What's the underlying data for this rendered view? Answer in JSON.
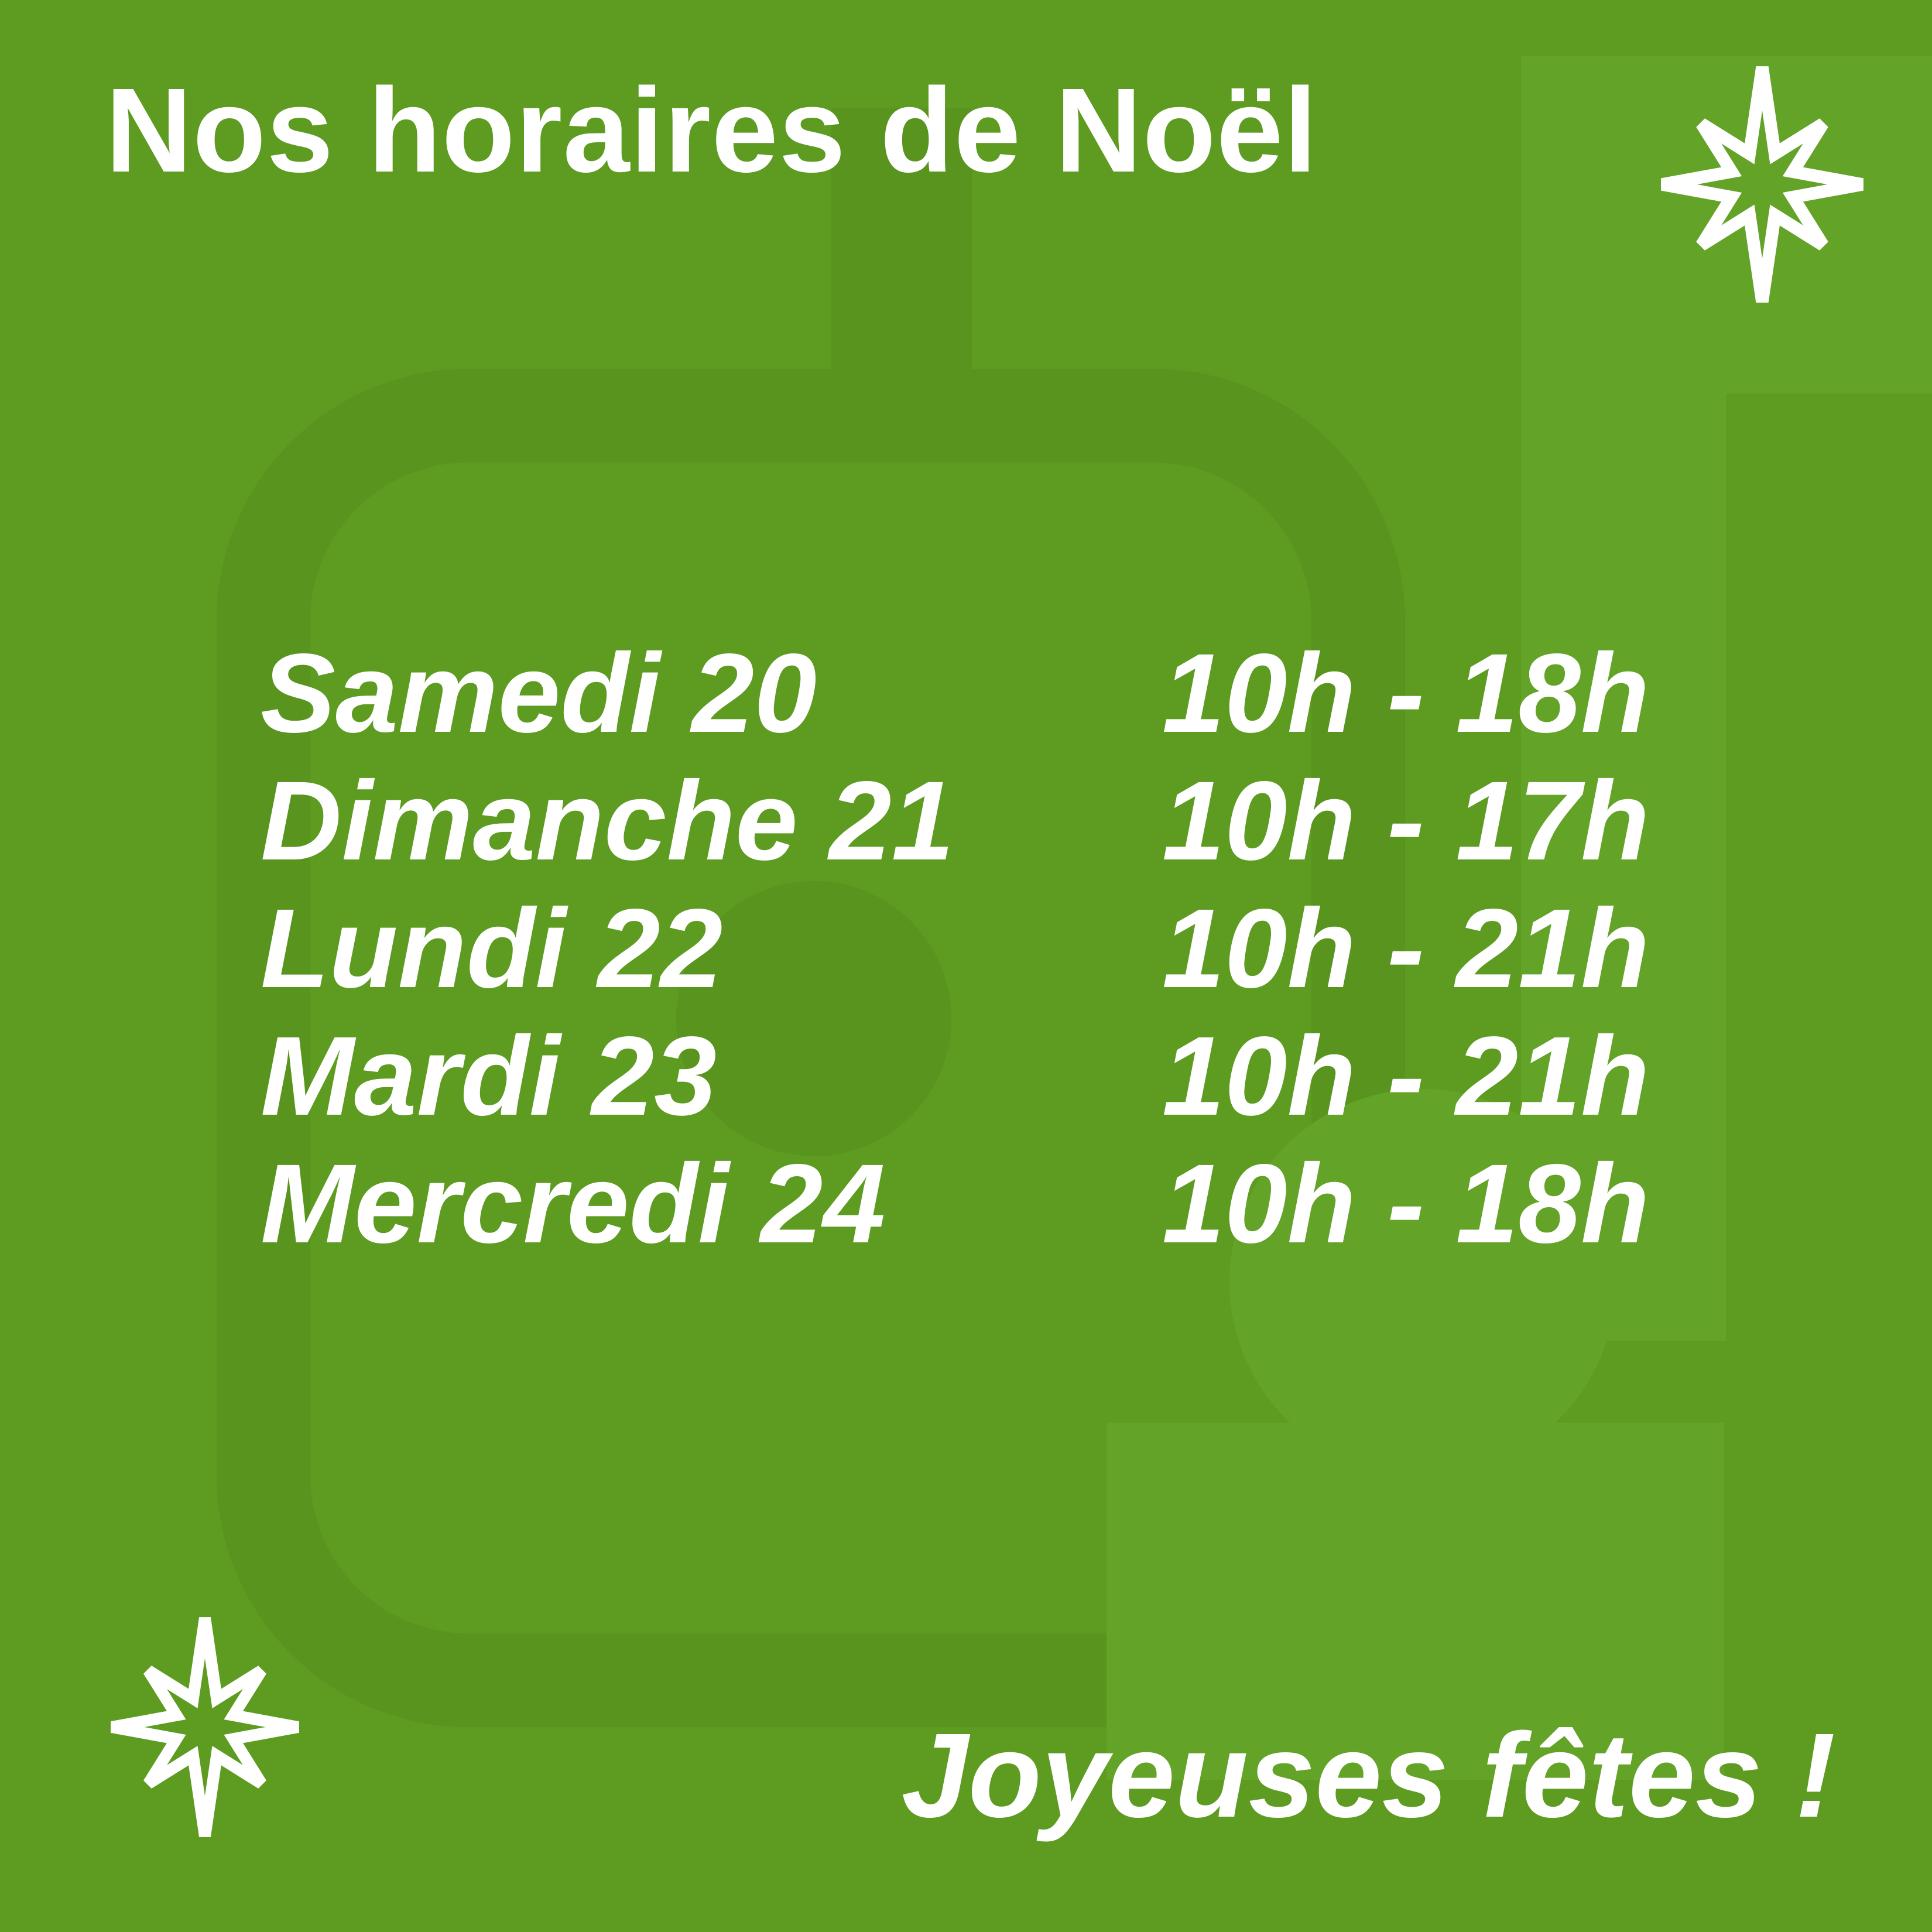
{
  "poster": {
    "title": "Nos horaires de Noël",
    "greeting": "Joyeuses fêtes !",
    "schedule": [
      {
        "day": "Samedi 20",
        "hours": "10h - 18h"
      },
      {
        "day": "Dimanche 21",
        "hours": "10h - 17h"
      },
      {
        "day": "Lundi 22",
        "hours": "10h - 21h"
      },
      {
        "day": "Mardi 23",
        "hours": "10h - 21h"
      },
      {
        "day": "Mercredi 24",
        "hours": "10h - 18h"
      }
    ],
    "icons": {
      "top_right": "sparkle-star",
      "bottom_left": "sparkle-star"
    },
    "colors": {
      "background": "#5d9c21",
      "watermark_dark": "#58941e",
      "watermark_light": "#63a327",
      "text": "#ffffff"
    }
  }
}
